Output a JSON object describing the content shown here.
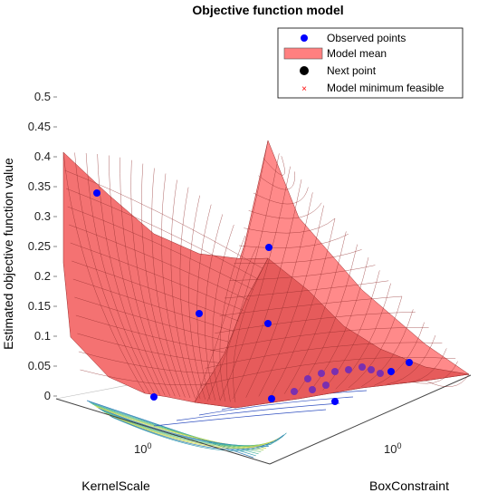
{
  "chart_data": {
    "type": "surface3d",
    "title": "Objective function model",
    "zlabel": "Estimated objective function value",
    "xlabel": "KernelScale",
    "ylabel": "BoxConstraint",
    "z_ticks": [
      "0",
      "0.05",
      "0.1",
      "0.15",
      "0.2",
      "0.25",
      "0.3",
      "0.35",
      "0.4",
      "0.45",
      "0.5"
    ],
    "zlim": [
      0,
      0.5
    ],
    "x_tick_label": "10^0",
    "y_tick_label": "10^0",
    "legend": {
      "placement": "top-right",
      "entries": [
        {
          "label": "Observed points",
          "marker": "circle",
          "color": "#0000ff"
        },
        {
          "label": "Model mean",
          "marker": "patch",
          "color": "#ff8080"
        },
        {
          "label": "Next point",
          "marker": "circle",
          "color": "#000000"
        },
        {
          "label": "Model minimum feasible",
          "marker": "x",
          "color": "#ff0000"
        }
      ]
    },
    "surface_color": "#ff6b6b",
    "observed_points_z": [
      0.345,
      0.25,
      0.143,
      0.125,
      0.06,
      0.045,
      0.04,
      0.04,
      0.035,
      0.03,
      0.028,
      0.025,
      0.02,
      0.018,
      0.015,
      0.01,
      0.005,
      0.0,
      0.0
    ]
  }
}
